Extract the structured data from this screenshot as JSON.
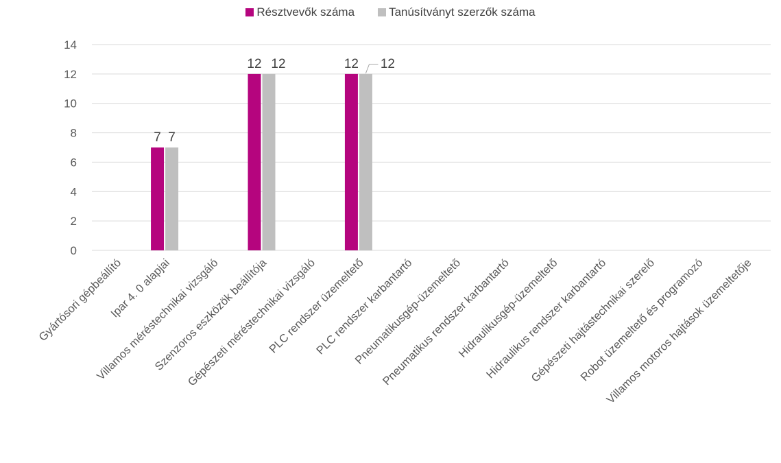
{
  "chart_data": {
    "type": "bar",
    "categories": [
      "Gyártósori gépbeállító",
      "Ipar 4. 0 alapjai",
      "Villamos méréstechnikai vizsgáló",
      "Szenzoros eszközök beállítója",
      "Gépészeti méréstechnikai vizsgáló",
      "PLC rendszer üzemeltető",
      "PLC rendszer karbantartó",
      "Pneumatikusgép-üzemeltető",
      "Pneumatikus rendszer karbantartó",
      "Hidraulikusgép-üzemeltető",
      "Hidraulikus rendszer karbantartó",
      "Gépészeti hajtástechnikai szerelő",
      "Robot üzemeltető és programozó",
      "Villamos motoros hajtások üzemeltetője"
    ],
    "series": [
      {
        "name": "Résztvevők száma",
        "color": "#B5057E",
        "values": [
          0,
          7,
          0,
          12,
          0,
          12,
          0,
          0,
          0,
          0,
          0,
          0,
          0,
          0
        ]
      },
      {
        "name": "Tanúsítványt szerzők száma",
        "color": "#BFBFBF",
        "values": [
          0,
          7,
          0,
          12,
          0,
          12,
          0,
          0,
          0,
          0,
          0,
          0,
          0,
          0
        ]
      }
    ],
    "data_labels": [
      {
        "series": 0,
        "index": 1,
        "text": "7"
      },
      {
        "series": 1,
        "index": 1,
        "text": "7"
      },
      {
        "series": 0,
        "index": 3,
        "text": "12"
      },
      {
        "series": 1,
        "index": 3,
        "text": "12"
      },
      {
        "series": 0,
        "index": 5,
        "text": "12"
      },
      {
        "series": 1,
        "index": 5,
        "text": "12"
      }
    ],
    "yticks": [
      "0",
      "2",
      "4",
      "6",
      "8",
      "10",
      "12",
      "14"
    ],
    "ylim": [
      0,
      14
    ],
    "grid": true,
    "legend": "top-center"
  }
}
